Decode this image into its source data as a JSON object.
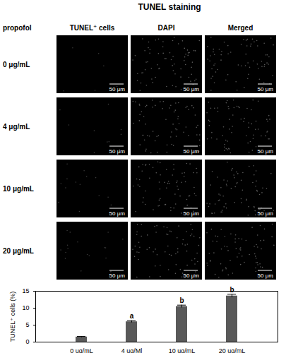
{
  "title": "TUNEL staining",
  "row_header": "propofol",
  "columns": [
    "TUNEL⁺ cells",
    "DAPI",
    "Merged"
  ],
  "rows": [
    "0 μg/mL",
    "4 μg/mL",
    "10 μg/mL",
    "20 μg/mL"
  ],
  "scale_bar": "50 μm",
  "chart_data": {
    "type": "bar",
    "categories": [
      "0 ug/mL",
      "4 ug/Ml",
      "10 ug/mL",
      "20 ug/mL"
    ],
    "values": [
      1.5,
      6.0,
      10.5,
      13.6
    ],
    "errors": [
      0.15,
      0.3,
      0.4,
      0.5
    ],
    "annotations": [
      null,
      "a",
      "b",
      "b"
    ],
    "color": "#595959",
    "ylabel": "TUNEL⁺ cells (%)",
    "ylim": [
      0,
      15
    ],
    "yticks": [
      0,
      5,
      10,
      15
    ]
  }
}
